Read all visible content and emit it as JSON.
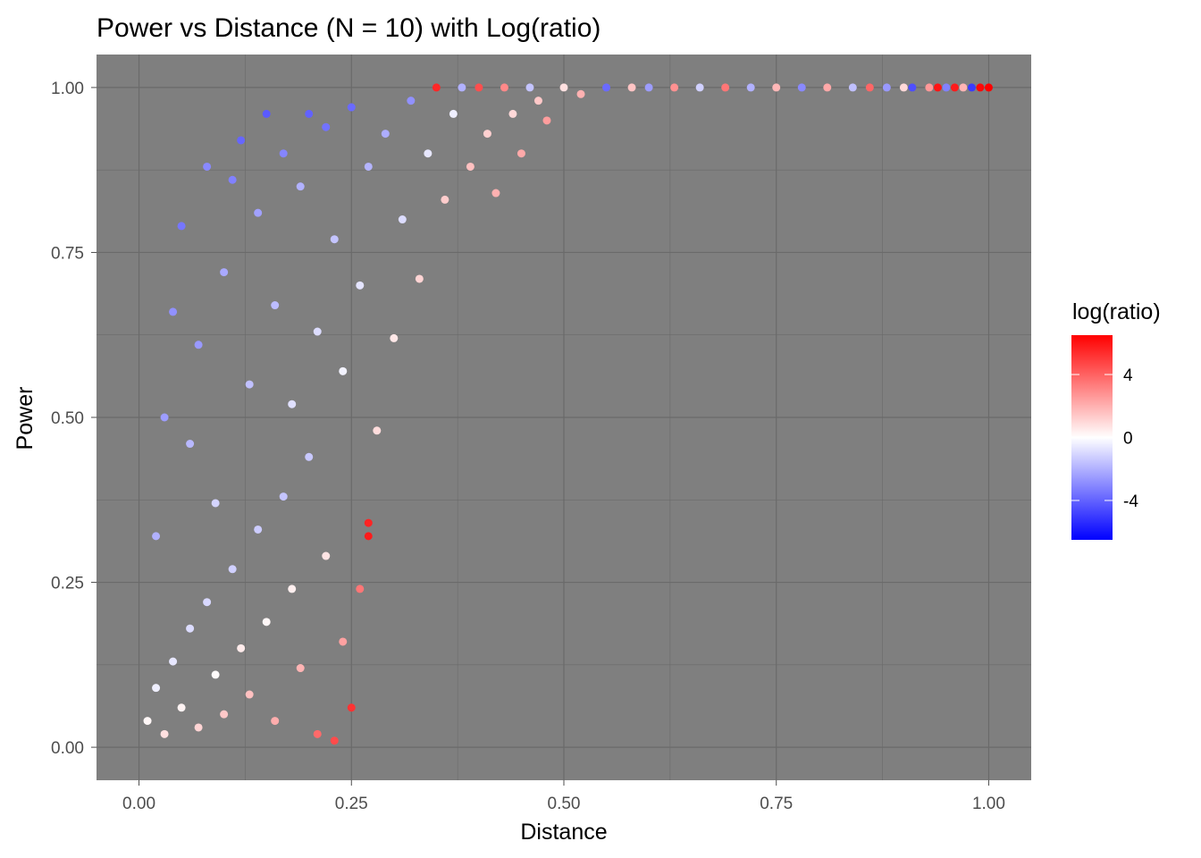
{
  "chart_data": {
    "type": "scatter",
    "title": "Power vs Distance (N = 10) with Log(ratio)",
    "xlabel": "Distance",
    "ylabel": "Power",
    "xlim": [
      -0.05,
      1.05
    ],
    "ylim": [
      -0.05,
      1.05
    ],
    "x_ticks": [
      0.0,
      0.25,
      0.5,
      0.75,
      1.0
    ],
    "x_tick_labels": [
      "0.00",
      "0.25",
      "0.50",
      "0.75",
      "1.00"
    ],
    "y_ticks": [
      0.0,
      0.25,
      0.5,
      0.75,
      1.0
    ],
    "y_tick_labels": [
      "0.00",
      "0.25",
      "0.50",
      "0.75",
      "1.00"
    ],
    "grid": true,
    "panel_background": "#7f7f7f",
    "grid_color": "#6a6a6a",
    "legend": {
      "title": "log(ratio)",
      "placement": "right",
      "low_color": "#0000ff",
      "mid_color": "#ffffff",
      "high_color": "#ff0000",
      "range": [
        -6.5,
        6.5
      ],
      "breaks": [
        4,
        0,
        -4
      ],
      "break_labels": [
        "4",
        "0",
        "-4"
      ]
    },
    "series": [
      {
        "color_by": "log(ratio)",
        "points": [
          [
            0.01,
            0.04,
            0.2
          ],
          [
            0.02,
            0.09,
            -0.4
          ],
          [
            0.03,
            0.02,
            0.8
          ],
          [
            0.04,
            0.13,
            -0.6
          ],
          [
            0.05,
            0.06,
            0.3
          ],
          [
            0.06,
            0.18,
            -0.9
          ],
          [
            0.07,
            0.03,
            1.1
          ],
          [
            0.08,
            0.22,
            -1.0
          ],
          [
            0.09,
            0.11,
            0.1
          ],
          [
            0.1,
            0.05,
            1.4
          ],
          [
            0.11,
            0.27,
            -1.2
          ],
          [
            0.12,
            0.15,
            0.5
          ],
          [
            0.13,
            0.08,
            1.6
          ],
          [
            0.14,
            0.33,
            -1.3
          ],
          [
            0.15,
            0.19,
            0.2
          ],
          [
            0.16,
            0.04,
            2.1
          ],
          [
            0.17,
            0.38,
            -1.5
          ],
          [
            0.18,
            0.24,
            0.4
          ],
          [
            0.19,
            0.12,
            1.9
          ],
          [
            0.2,
            0.44,
            -1.4
          ],
          [
            0.21,
            0.02,
            3.8
          ],
          [
            0.22,
            0.29,
            0.7
          ],
          [
            0.23,
            0.01,
            4.6
          ],
          [
            0.24,
            0.16,
            2.4
          ],
          [
            0.25,
            0.06,
            5.2
          ],
          [
            0.26,
            0.24,
            3.5
          ],
          [
            0.27,
            0.34,
            5.6
          ],
          [
            0.27,
            0.32,
            5.8
          ],
          [
            0.02,
            0.32,
            -2.0
          ],
          [
            0.03,
            0.5,
            -2.5
          ],
          [
            0.04,
            0.66,
            -2.8
          ],
          [
            0.05,
            0.79,
            -3.5
          ],
          [
            0.06,
            0.46,
            -1.8
          ],
          [
            0.07,
            0.61,
            -2.6
          ],
          [
            0.08,
            0.88,
            -3.0
          ],
          [
            0.09,
            0.37,
            -1.1
          ],
          [
            0.1,
            0.72,
            -2.2
          ],
          [
            0.11,
            0.86,
            -3.2
          ],
          [
            0.12,
            0.92,
            -3.9
          ],
          [
            0.13,
            0.55,
            -1.6
          ],
          [
            0.14,
            0.81,
            -2.4
          ],
          [
            0.15,
            0.96,
            -4.2
          ],
          [
            0.16,
            0.67,
            -1.7
          ],
          [
            0.17,
            0.9,
            -3.1
          ],
          [
            0.18,
            0.52,
            -0.8
          ],
          [
            0.19,
            0.85,
            -2.0
          ],
          [
            0.2,
            0.96,
            -4.0
          ],
          [
            0.21,
            0.63,
            -0.9
          ],
          [
            0.22,
            0.94,
            -3.6
          ],
          [
            0.23,
            0.77,
            -1.5
          ],
          [
            0.24,
            0.57,
            -0.3
          ],
          [
            0.25,
            0.97,
            -3.8
          ],
          [
            0.26,
            0.7,
            -0.7
          ],
          [
            0.27,
            0.88,
            -1.9
          ],
          [
            0.28,
            0.48,
            0.9
          ],
          [
            0.29,
            0.93,
            -2.1
          ],
          [
            0.3,
            0.62,
            0.6
          ],
          [
            0.31,
            0.8,
            -0.9
          ],
          [
            0.32,
            0.98,
            -2.8
          ],
          [
            0.33,
            0.71,
            1.1
          ],
          [
            0.34,
            0.9,
            -0.6
          ],
          [
            0.35,
            1.0,
            5.5
          ],
          [
            0.36,
            0.83,
            1.3
          ],
          [
            0.37,
            0.96,
            -0.4
          ],
          [
            0.38,
            1.0,
            -2.0
          ],
          [
            0.39,
            0.88,
            1.6
          ],
          [
            0.4,
            1.0,
            4.5
          ],
          [
            0.41,
            0.93,
            1.2
          ],
          [
            0.42,
            0.84,
            2.0
          ],
          [
            0.43,
            1.0,
            3.0
          ],
          [
            0.44,
            0.96,
            1.0
          ],
          [
            0.45,
            0.9,
            2.2
          ],
          [
            0.46,
            1.0,
            -1.5
          ],
          [
            0.47,
            0.98,
            1.4
          ],
          [
            0.48,
            0.95,
            2.5
          ],
          [
            0.5,
            1.0,
            0.8
          ],
          [
            0.52,
            0.99,
            2.0
          ],
          [
            0.55,
            1.0,
            -3.8
          ],
          [
            0.58,
            1.0,
            1.5
          ],
          [
            0.6,
            1.0,
            -2.5
          ],
          [
            0.63,
            1.0,
            2.8
          ],
          [
            0.66,
            1.0,
            -1.2
          ],
          [
            0.69,
            1.0,
            3.5
          ],
          [
            0.72,
            1.0,
            -2.0
          ],
          [
            0.75,
            1.0,
            1.8
          ],
          [
            0.78,
            1.0,
            -3.0
          ],
          [
            0.81,
            1.0,
            2.2
          ],
          [
            0.84,
            1.0,
            -1.6
          ],
          [
            0.86,
            1.0,
            3.9
          ],
          [
            0.88,
            1.0,
            -2.6
          ],
          [
            0.9,
            1.0,
            1.0
          ],
          [
            0.91,
            1.0,
            -4.5
          ],
          [
            0.93,
            1.0,
            2.6
          ],
          [
            0.94,
            1.0,
            6.0
          ],
          [
            0.95,
            1.0,
            -3.2
          ],
          [
            0.96,
            1.0,
            5.8
          ],
          [
            0.97,
            1.0,
            1.9
          ],
          [
            0.98,
            1.0,
            -5.0
          ],
          [
            0.99,
            1.0,
            6.3
          ],
          [
            1.0,
            1.0,
            6.5
          ]
        ]
      }
    ]
  }
}
